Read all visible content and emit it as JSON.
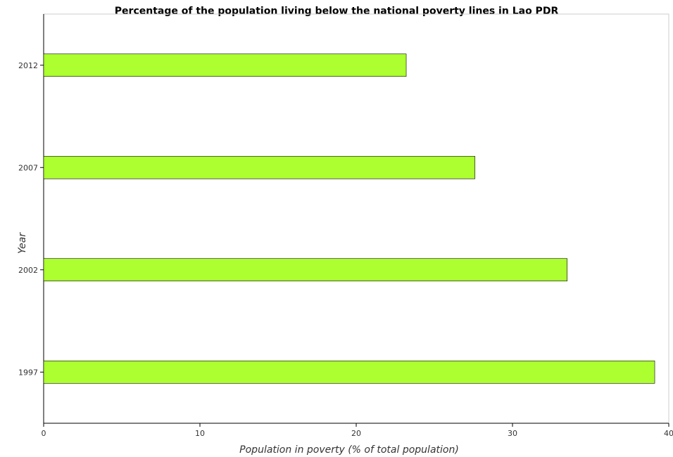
{
  "chart_data": {
    "type": "bar",
    "orientation": "horizontal",
    "title": "Percentage of the population living below the national poverty lines in Lao PDR",
    "xlabel": "Population in poverty (% of total population)",
    "ylabel": "Year",
    "categories": [
      "1997",
      "2002",
      "2007",
      "2012"
    ],
    "values": [
      39.1,
      33.5,
      27.6,
      23.2
    ],
    "xlim": [
      0,
      40
    ],
    "xticks": [
      "0",
      "10",
      "20",
      "30",
      "40"
    ],
    "grid": false,
    "bar_color": "#adff2f",
    "bar_edge_color": "#000000"
  }
}
